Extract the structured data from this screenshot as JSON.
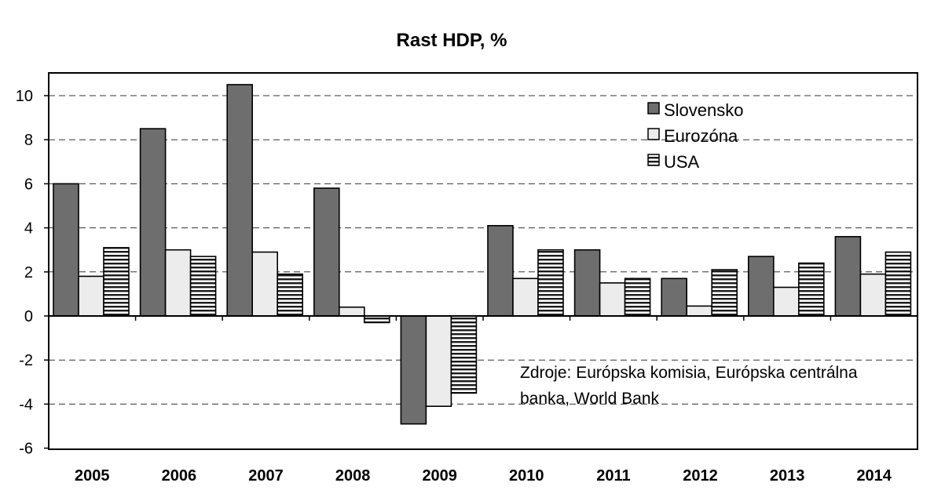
{
  "chart_data": {
    "type": "bar",
    "title": "Rast HDP, %",
    "xlabel": "",
    "ylabel": "",
    "categories": [
      "2005",
      "2006",
      "2007",
      "2008",
      "2009",
      "2010",
      "2011",
      "2012",
      "2013",
      "2014"
    ],
    "series": [
      {
        "name": "Slovensko",
        "values": [
          6.0,
          8.5,
          10.5,
          5.8,
          -4.9,
          4.1,
          3.0,
          1.7,
          2.7,
          3.6
        ],
        "color": "#6e6e6e",
        "pattern": "solid"
      },
      {
        "name": "Eurozóna",
        "values": [
          1.8,
          3.0,
          2.9,
          0.4,
          -4.1,
          1.7,
          1.5,
          0.45,
          1.3,
          1.9
        ],
        "color": "#ececec",
        "pattern": "solid"
      },
      {
        "name": "USA",
        "values": [
          3.1,
          2.7,
          1.9,
          -0.3,
          -3.5,
          3.0,
          1.7,
          2.1,
          2.4,
          2.9
        ],
        "color": "#ffffff",
        "pattern": "horizontal-stripes"
      }
    ],
    "ylim": [
      -6,
      11
    ],
    "yticks": [
      10,
      8,
      6,
      4,
      2,
      0,
      -2,
      -4,
      -6
    ],
    "grid": "horizontal-dashed",
    "legend_position": "top-right",
    "annotation": "Zdroje: Európska komisia, Európska centrálna banka, World Bank",
    "annotation_lines": [
      "Zdroje: Európska komisia, Európska centrálna",
      "banka, World Bank"
    ]
  }
}
